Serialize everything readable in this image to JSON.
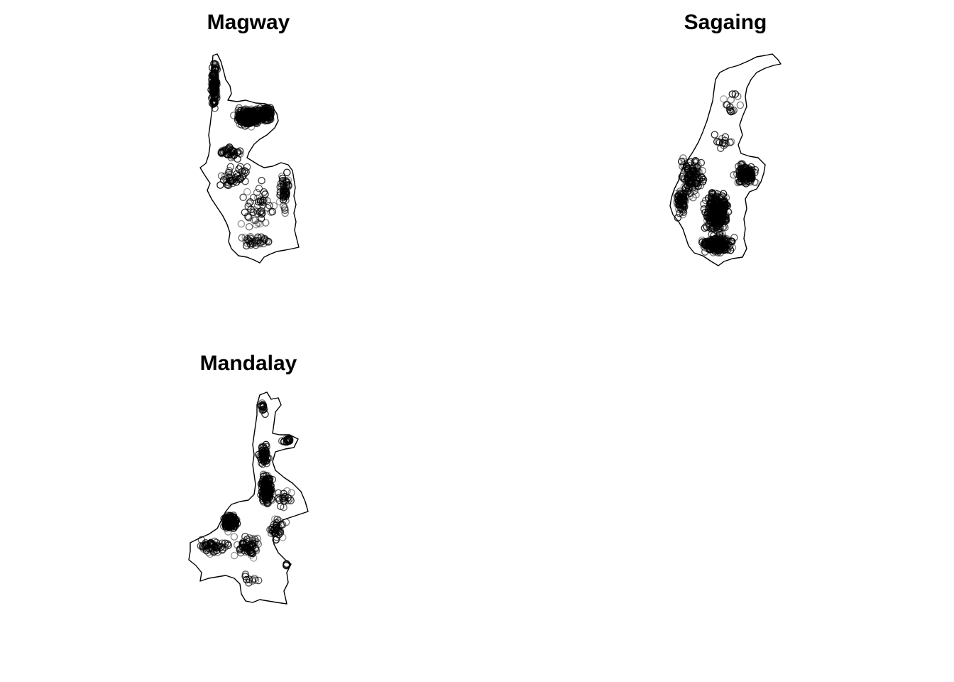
{
  "maps": [
    {
      "id": "magway",
      "title": "Magway",
      "point_color": "#000000",
      "point_opacity_range": [
        0.35,
        0.95
      ],
      "boundary_color": "#000000"
    },
    {
      "id": "sagaing",
      "title": "Sagaing",
      "point_color": "#000000",
      "point_opacity_range": [
        0.35,
        0.95
      ],
      "boundary_color": "#000000"
    },
    {
      "id": "mandalay",
      "title": "Mandalay",
      "point_color": "#000000",
      "point_opacity_range": [
        0.35,
        0.95
      ],
      "boundary_color": "#000000"
    }
  ]
}
